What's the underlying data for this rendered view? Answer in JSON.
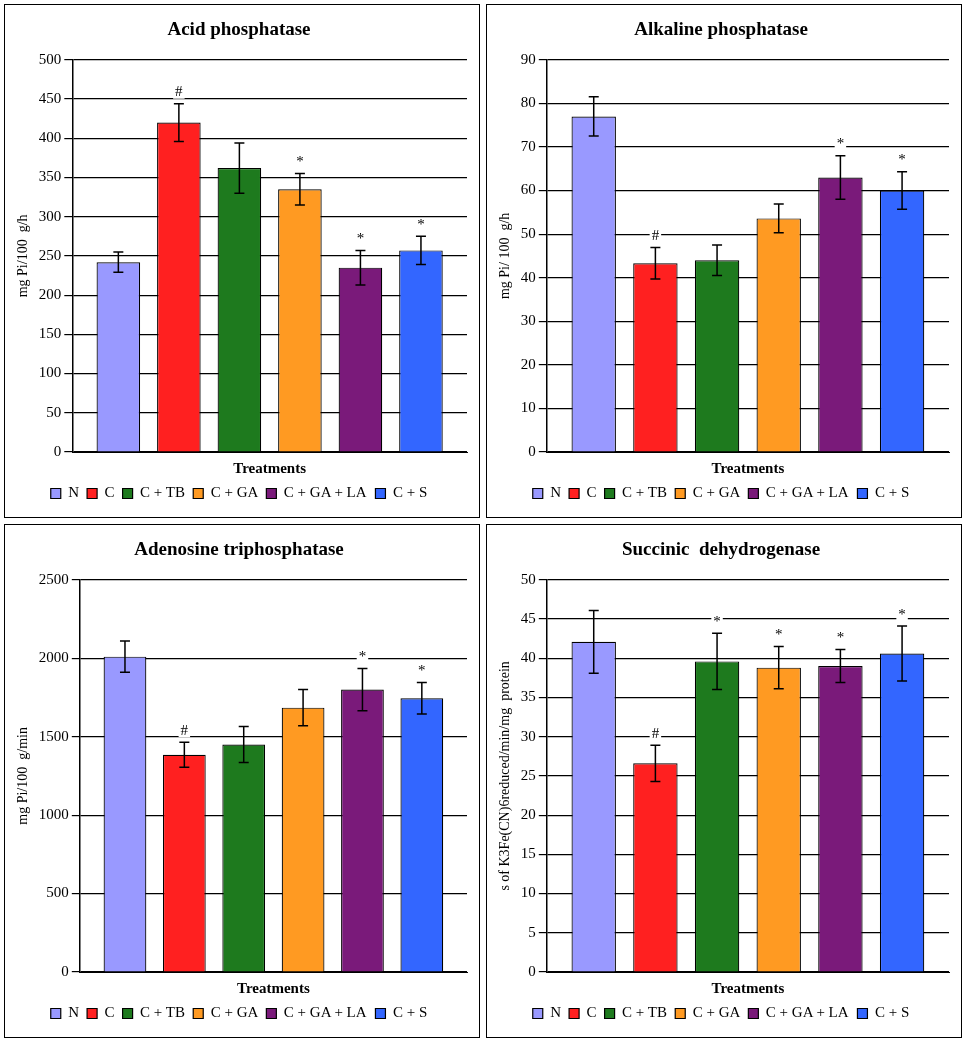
{
  "chart_data": [
    {
      "type": "bar",
      "title": "Acid phosphatase",
      "xlabel": "Treatments",
      "ylabel": "mg Pi/100  g/h",
      "categories": [
        null
      ],
      "ylim": [
        0,
        500
      ],
      "yticks": [
        0,
        50,
        100,
        150,
        200,
        250,
        300,
        350,
        400,
        450,
        500
      ],
      "grid": "y",
      "legend": "bottom",
      "series": [
        {
          "name": "N",
          "color": "#9999ff",
          "values": [
            242
          ],
          "errors": [
            13
          ]
        },
        {
          "name": "C",
          "color": "#ff2020",
          "values": [
            420
          ],
          "errors": [
            24
          ],
          "value_labels": [
            "#"
          ]
        },
        {
          "name": "C + TB",
          "color": "#1e7a1e",
          "values": [
            362
          ],
          "errors": [
            32
          ]
        },
        {
          "name": "C + GA",
          "color": "#ff9a22",
          "values": [
            335
          ],
          "errors": [
            20
          ],
          "value_labels": [
            "*"
          ]
        },
        {
          "name": "C + GA + LA",
          "color": "#7a1a7a",
          "values": [
            235
          ],
          "errors": [
            22
          ],
          "value_labels": [
            "*"
          ]
        },
        {
          "name": "C + S",
          "color": "#3366ff",
          "values": [
            257
          ],
          "errors": [
            18
          ],
          "value_labels": [
            "*"
          ]
        }
      ]
    },
    {
      "type": "bar",
      "title": "Alkaline phosphatase",
      "xlabel": "Treatments",
      "ylabel": "mg Pi/ 100  g/h",
      "categories": [
        null
      ],
      "ylim": [
        0,
        90
      ],
      "yticks": [
        0,
        10,
        20,
        30,
        40,
        50,
        60,
        70,
        80,
        90
      ],
      "grid": "y",
      "legend": "bottom",
      "series": [
        {
          "name": "N",
          "color": "#9999ff",
          "values": [
            77
          ],
          "errors": [
            4.5
          ]
        },
        {
          "name": "C",
          "color": "#ff2020",
          "values": [
            43.3
          ],
          "errors": [
            3.6
          ],
          "value_labels": [
            "#"
          ]
        },
        {
          "name": "C + TB",
          "color": "#1e7a1e",
          "values": [
            44
          ],
          "errors": [
            3.5
          ]
        },
        {
          "name": "C + GA",
          "color": "#ff9a22",
          "values": [
            53.6
          ],
          "errors": [
            3.3
          ]
        },
        {
          "name": "C + GA + LA",
          "color": "#7a1a7a",
          "values": [
            63
          ],
          "errors": [
            5
          ],
          "value_labels": [
            "*"
          ]
        },
        {
          "name": "C + S",
          "color": "#3366ff",
          "values": [
            60
          ],
          "errors": [
            4.3
          ],
          "value_labels": [
            "*"
          ]
        }
      ]
    },
    {
      "type": "bar",
      "title": "Adenosine triphosphatase",
      "xlabel": "Treatments",
      "ylabel": "mg Pi/100  g/min",
      "categories": [
        null
      ],
      "ylim": [
        0,
        2500
      ],
      "yticks": [
        0,
        500,
        1000,
        1500,
        2000,
        2500
      ],
      "grid": "y",
      "legend": "bottom",
      "series": [
        {
          "name": "N",
          "color": "#9999ff",
          "values": [
            2010
          ],
          "errors": [
            100
          ]
        },
        {
          "name": "C",
          "color": "#ff2020",
          "values": [
            1385
          ],
          "errors": [
            80
          ],
          "value_labels": [
            "#"
          ]
        },
        {
          "name": "C + TB",
          "color": "#1e7a1e",
          "values": [
            1450
          ],
          "errors": [
            115
          ]
        },
        {
          "name": "C + GA",
          "color": "#ff9a22",
          "values": [
            1685
          ],
          "errors": [
            115
          ]
        },
        {
          "name": "C + GA + LA",
          "color": "#7a1a7a",
          "values": [
            1800
          ],
          "errors": [
            135
          ],
          "value_labels": [
            "*"
          ]
        },
        {
          "name": "C + S",
          "color": "#3366ff",
          "values": [
            1745
          ],
          "errors": [
            100
          ],
          "value_labels": [
            "*"
          ]
        }
      ]
    },
    {
      "type": "bar",
      "title": "Succinic  dehydrogenase",
      "xlabel": "Treatments",
      "ylabel": "s of K3Fe(CN)6reduced/min/mg  protein",
      "categories": [
        null
      ],
      "ylim": [
        0,
        50
      ],
      "yticks": [
        0,
        5,
        10,
        15,
        20,
        25,
        30,
        35,
        40,
        45,
        50
      ],
      "grid": "y",
      "legend": "bottom",
      "series": [
        {
          "name": "N",
          "color": "#9999ff",
          "values": [
            42.1
          ],
          "errors": [
            4
          ]
        },
        {
          "name": "C",
          "color": "#ff2020",
          "values": [
            26.6
          ],
          "errors": [
            2.3
          ],
          "value_labels": [
            "#"
          ]
        },
        {
          "name": "C + TB",
          "color": "#1e7a1e",
          "values": [
            39.6
          ],
          "errors": [
            3.6
          ],
          "value_labels": [
            "*"
          ]
        },
        {
          "name": "C + GA",
          "color": "#ff9a22",
          "values": [
            38.8
          ],
          "errors": [
            2.7
          ],
          "value_labels": [
            "*"
          ]
        },
        {
          "name": "C + GA + LA",
          "color": "#7a1a7a",
          "values": [
            39
          ],
          "errors": [
            2.1
          ],
          "value_labels": [
            "*"
          ]
        },
        {
          "name": "C + S",
          "color": "#3366ff",
          "values": [
            40.6
          ],
          "errors": [
            3.5
          ],
          "value_labels": [
            "*"
          ]
        }
      ]
    }
  ]
}
